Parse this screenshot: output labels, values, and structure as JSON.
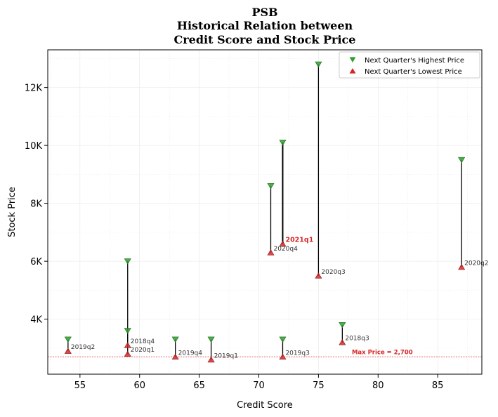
{
  "chart_data": {
    "type": "scatter",
    "title_lines": [
      "PSB",
      "Historical Relation between",
      "Credit Score and Stock Price"
    ],
    "xlabel": "Credit Score",
    "ylabel": "Stock Price",
    "xlim": [
      52.3,
      88.7
    ],
    "ylim": [
      2100,
      13300
    ],
    "xticks": [
      55,
      60,
      65,
      70,
      75,
      80,
      85
    ],
    "xtick_labels": [
      "55",
      "60",
      "65",
      "70",
      "75",
      "80",
      "85"
    ],
    "yticks": [
      4000,
      6000,
      8000,
      10000,
      12000
    ],
    "ytick_labels": [
      "4K",
      "6K",
      "8K",
      "10K",
      "12K"
    ],
    "grid": true,
    "legend_position": "top-right",
    "series": [
      {
        "name": "Next Quarter's Highest Price",
        "marker": "triangle-down",
        "color": "#2ca02c"
      },
      {
        "name": "Next Quarter's Lowest Price",
        "marker": "triangle-up",
        "color": "#d62728"
      }
    ],
    "points": [
      {
        "label": "2019q2",
        "x": 54,
        "high": 3300,
        "low": 2900,
        "highlight": false
      },
      {
        "label": "2018q4",
        "x": 59,
        "high": 3600,
        "low": 3100,
        "highlight": false
      },
      {
        "label": "2020q1",
        "x": 59,
        "high": 6000,
        "low": 2800,
        "highlight": false
      },
      {
        "label": "2019q4",
        "x": 63,
        "high": 3300,
        "low": 2700,
        "highlight": false
      },
      {
        "label": "2019q1",
        "x": 66,
        "high": 3300,
        "low": 2600,
        "highlight": false
      },
      {
        "label": "2020q4",
        "x": 71,
        "high": 8600,
        "low": 6300,
        "highlight": false
      },
      {
        "label": "2019q3",
        "x": 72,
        "high": 3300,
        "low": 2700,
        "highlight": false
      },
      {
        "label": "2021q1",
        "x": 72,
        "high": 10100,
        "low": 6600,
        "highlight": true
      },
      {
        "label": "2020q3",
        "x": 75,
        "high": 12800,
        "low": 5500,
        "highlight": false
      },
      {
        "label": "2018q3",
        "x": 77,
        "high": 3800,
        "low": 3200,
        "highlight": false
      },
      {
        "label": "2020q2",
        "x": 87,
        "high": 9500,
        "low": 5800,
        "highlight": false
      }
    ],
    "reference_line": {
      "y": 2700,
      "label": "Max Price = 2,700",
      "color": "#d62728"
    }
  }
}
